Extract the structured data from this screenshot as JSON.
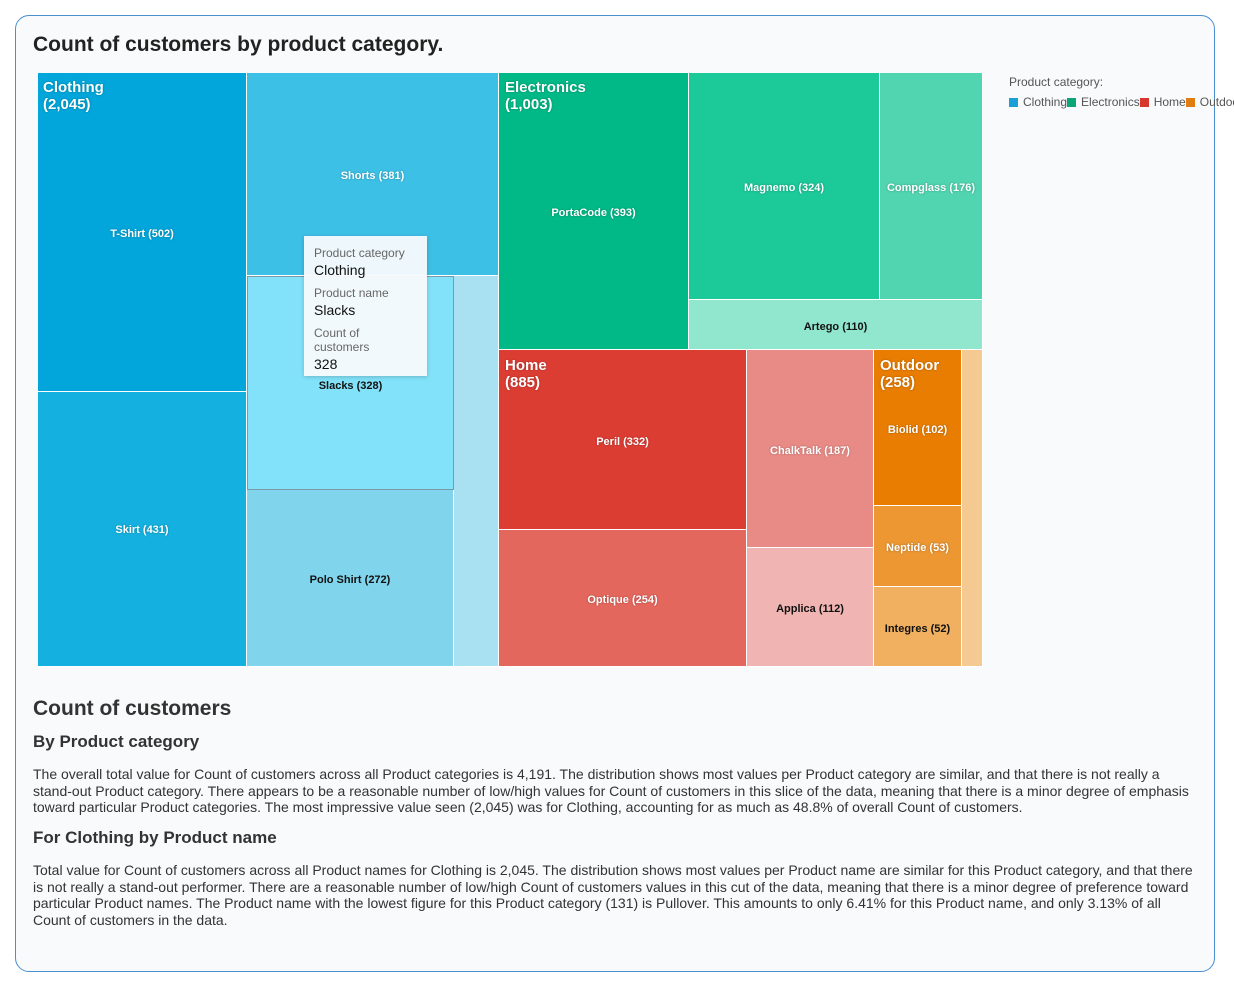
{
  "title": "Count of customers by product category.",
  "legend": {
    "title": "Product category:",
    "items": [
      {
        "label": "Clothing",
        "color": "#1a9fd6"
      },
      {
        "label": "Electronics",
        "color": "#0aa67a"
      },
      {
        "label": "Home",
        "color": "#d6362c"
      },
      {
        "label": "Outdoor",
        "color": "#e07d10"
      }
    ]
  },
  "tooltip": {
    "k1": "Product category",
    "v1": "Clothing",
    "k2": "Product name",
    "v2": "Slacks",
    "k3": "Count of customers",
    "v3": "328"
  },
  "chart_data": {
    "type": "treemap",
    "title": "Count of customers by product category.",
    "categories": [
      {
        "name": "Clothing",
        "label": "Clothing (2,045)",
        "value": 2045,
        "children": [
          {
            "name": "T-Shirt",
            "label": "T-Shirt (502)",
            "value": 502,
            "color": "#02a6da"
          },
          {
            "name": "Skirt",
            "label": "Skirt (431)",
            "value": 431,
            "color": "#14b1e0"
          },
          {
            "name": "Shorts",
            "label": "Shorts (381)",
            "value": 381,
            "color": "#3dc0e6"
          },
          {
            "name": "Slacks",
            "label": "Slacks (328)",
            "value": 328,
            "color": "#82e2f9"
          },
          {
            "name": "Polo Shirt",
            "label": "Polo Shirt (272)",
            "value": 272,
            "color": "#80d5ed"
          },
          {
            "name": "Pullover",
            "label": "",
            "value": 131,
            "color": "#a9e1f2"
          }
        ]
      },
      {
        "name": "Electronics",
        "label": "Electronics (1,003)",
        "value": 1003,
        "children": [
          {
            "name": "PortaCode",
            "label": "PortaCode (393)",
            "value": 393,
            "color": "#00b987"
          },
          {
            "name": "Magnemo",
            "label": "Magnemo (324)",
            "value": 324,
            "color": "#1cc999"
          },
          {
            "name": "Compglass",
            "label": "Compglass (176)",
            "value": 176,
            "color": "#50d5b0"
          },
          {
            "name": "Artego",
            "label": "Artego (110)",
            "value": 110,
            "color": "#91e7cd"
          }
        ]
      },
      {
        "name": "Home",
        "label": "Home (885)",
        "value": 885,
        "children": [
          {
            "name": "Peril",
            "label": "Peril (332)",
            "value": 332,
            "color": "#dc3d33"
          },
          {
            "name": "Optique",
            "label": "Optique (254)",
            "value": 254,
            "color": "#e4675d"
          },
          {
            "name": "ChalkTalk",
            "label": "ChalkTalk (187)",
            "value": 187,
            "color": "#e88b86"
          },
          {
            "name": "Applica",
            "label": "Applica (112)",
            "value": 112,
            "color": "#f0b5b2"
          }
        ]
      },
      {
        "name": "Outdoor",
        "label": "Outdoor (258)",
        "value": 258,
        "children": [
          {
            "name": "Biolid",
            "label": "Biolid (102)",
            "value": 102,
            "color": "#e87d02"
          },
          {
            "name": "Neptide",
            "label": "Neptide (53)",
            "value": 53,
            "color": "#ec9731"
          },
          {
            "name": "Integres",
            "label": "Integres (52)",
            "value": 52,
            "color": "#f0b05f"
          },
          {
            "name": "",
            "label": "",
            "value": 51,
            "color": "#f4c992"
          }
        ]
      }
    ]
  },
  "summary": {
    "heading": "Count of customers",
    "sub1": "By Product category",
    "p1": "The overall total value for Count of customers across all Product categories is 4,191. The distribution shows most values per Product category are similar, and that there is not really a stand-out Product category. There appears to be a reasonable number of low/high values for Count of customers in this slice of the data, meaning that there is a minor degree of emphasis toward particular Product categories. The most impressive value seen (2,045) was for Clothing, accounting for as much as 48.8% of overall Count of customers.",
    "sub2": "For Clothing by Product name",
    "p2": "Total value for Count of customers across all Product names for Clothing is 2,045. The distribution shows most values per Product name are similar for this Product category, and that there is not really a stand-out performer. There are a reasonable number of low/high Count of customers values in this cut of the data, meaning that there is a minor degree of preference toward particular Product names. The Product name with the lowest figure for this Product category (131) is Pullover. This amounts to only 6.41% for this Product name, and only 3.13% of all Count of customers in the data."
  }
}
